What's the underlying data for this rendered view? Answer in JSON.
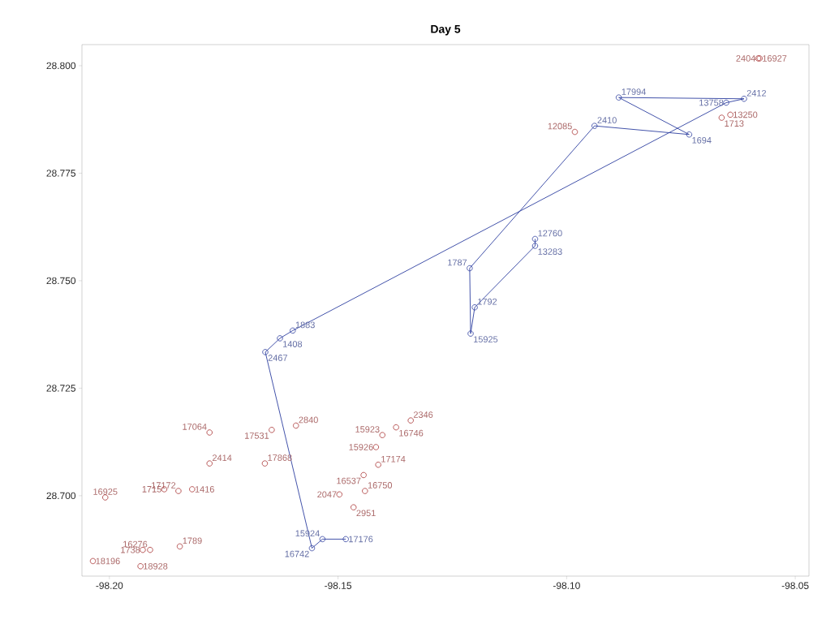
{
  "chart_data": {
    "type": "scatter",
    "title": "Day 5",
    "xlim": [
      -98.206,
      -98.047
    ],
    "ylim": [
      28.6813,
      28.8049
    ],
    "xticks": [
      {
        "value": -98.2,
        "label": "-98.20"
      },
      {
        "value": -98.15,
        "label": "-98.15"
      },
      {
        "value": -98.1,
        "label": "-98.10"
      },
      {
        "value": -98.05,
        "label": "-98.05"
      }
    ],
    "yticks": [
      {
        "value": 28.7,
        "label": "28.700"
      },
      {
        "value": 28.725,
        "label": "28.725"
      },
      {
        "value": 28.75,
        "label": "28.750"
      },
      {
        "value": 28.775,
        "label": "28.775"
      },
      {
        "value": 28.8,
        "label": "28.800"
      }
    ],
    "grid": false,
    "marker": "circle",
    "series": [
      {
        "type": "line",
        "color": "#2e3fa0",
        "x": [
          -98.1483,
          -98.1534,
          -98.1557,
          -98.1659,
          -98.1627,
          -98.1599,
          -98.0651,
          -98.0612,
          -98.0886,
          -98.0732,
          -98.0939,
          -98.1212,
          -98.121,
          -98.1201,
          -98.1069,
          -98.1069
        ],
        "values": [
          28.6899,
          28.6899,
          28.6878,
          28.7334,
          28.7366,
          28.7384,
          28.7914,
          28.7923,
          28.7926,
          28.784,
          28.786,
          28.7529,
          28.7377,
          28.7438,
          28.7581,
          28.7597
        ]
      },
      {
        "color": "#a83232",
        "x": [
          -98.1781,
          -98.1645,
          -98.1592,
          -98.1403,
          -98.1373,
          -98.1341,
          -98.1417,
          -98.1412,
          -98.1441,
          -98.1444,
          -98.1781,
          -98.166,
          -98.2009,
          -98.188,
          -98.1849,
          -98.1819,
          -98.1497,
          -98.1466,
          -98.1846,
          -98.1927,
          -98.1911,
          -98.2036,
          -98.1932,
          -98.0982,
          -98.0661,
          -98.0642,
          -98.0581,
          -98.0578
        ],
        "values": [
          28.7147,
          28.7153,
          28.7163,
          28.7141,
          28.7159,
          28.7175,
          28.7113,
          28.7072,
          28.7011,
          28.7048,
          28.7075,
          28.7075,
          28.6996,
          28.7015,
          28.7011,
          28.7015,
          28.7003,
          28.6973,
          28.6882,
          28.6874,
          28.6874,
          28.6848,
          28.6836,
          28.7846,
          28.7879,
          28.7886,
          28.8017,
          28.8017
        ]
      }
    ],
    "annotations": [
      {
        "text": "17176",
        "x": -98.1483,
        "y": 28.6899
      },
      {
        "text": "15924",
        "x": -98.1534,
        "y": 28.6899
      },
      {
        "text": "16742",
        "x": -98.1557,
        "y": 28.6878
      },
      {
        "text": "2467",
        "x": -98.1659,
        "y": 28.7334
      },
      {
        "text": "1408",
        "x": -98.1627,
        "y": 28.7366
      },
      {
        "text": "1883",
        "x": -98.1599,
        "y": 28.7384
      },
      {
        "text": "13758",
        "x": -98.0651,
        "y": 28.7914
      },
      {
        "text": "2412",
        "x": -98.0612,
        "y": 28.7923
      },
      {
        "text": "17994",
        "x": -98.0886,
        "y": 28.7926
      },
      {
        "text": "1694",
        "x": -98.0732,
        "y": 28.784
      },
      {
        "text": "2410",
        "x": -98.0939,
        "y": 28.786
      },
      {
        "text": "1787",
        "x": -98.1212,
        "y": 28.7529
      },
      {
        "text": "15925",
        "x": -98.121,
        "y": 28.7377
      },
      {
        "text": "1792",
        "x": -98.1201,
        "y": 28.7438
      },
      {
        "text": "13283",
        "x": -98.1069,
        "y": 28.7581
      },
      {
        "text": "12760",
        "x": -98.1069,
        "y": 28.7597
      },
      {
        "text": "17064",
        "x": -98.1781,
        "y": 28.7147
      },
      {
        "text": "17531",
        "x": -98.1645,
        "y": 28.7153
      },
      {
        "text": "2840",
        "x": -98.1592,
        "y": 28.7163
      },
      {
        "text": "15923",
        "x": -98.1403,
        "y": 28.7141
      },
      {
        "text": "16746",
        "x": -98.1373,
        "y": 28.7159
      },
      {
        "text": "2346",
        "x": -98.1341,
        "y": 28.7175
      },
      {
        "text": "15926",
        "x": -98.1417,
        "y": 28.7113
      },
      {
        "text": "17174",
        "x": -98.1412,
        "y": 28.7072
      },
      {
        "text": "16750",
        "x": -98.1441,
        "y": 28.7011
      },
      {
        "text": "16537",
        "x": -98.1444,
        "y": 28.7048
      },
      {
        "text": "2414",
        "x": -98.1781,
        "y": 28.7075
      },
      {
        "text": "17868",
        "x": -98.166,
        "y": 28.7075
      },
      {
        "text": "16925",
        "x": -98.2009,
        "y": 28.6996
      },
      {
        "text": "1715",
        "x": -98.188,
        "y": 28.7015
      },
      {
        "text": "17172",
        "x": -98.1849,
        "y": 28.7011
      },
      {
        "text": "1416",
        "x": -98.1819,
        "y": 28.7015
      },
      {
        "text": "2047",
        "x": -98.1497,
        "y": 28.7003
      },
      {
        "text": "2951",
        "x": -98.1466,
        "y": 28.6973
      },
      {
        "text": "1789",
        "x": -98.1846,
        "y": 28.6882
      },
      {
        "text": "1738",
        "x": -98.1927,
        "y": 28.6874
      },
      {
        "text": "16276",
        "x": -98.1911,
        "y": 28.6874
      },
      {
        "text": "18196",
        "x": -98.2036,
        "y": 28.6848
      },
      {
        "text": "18928",
        "x": -98.1932,
        "y": 28.6836
      },
      {
        "text": "12085",
        "x": -98.0982,
        "y": 28.7846
      },
      {
        "text": "1713",
        "x": -98.0661,
        "y": 28.7879
      },
      {
        "text": "13250",
        "x": -98.0642,
        "y": 28.7886
      },
      {
        "text": "2404",
        "x": -98.0581,
        "y": 28.8017
      },
      {
        "text": "16927",
        "x": -98.0578,
        "y": 28.8017
      }
    ]
  }
}
